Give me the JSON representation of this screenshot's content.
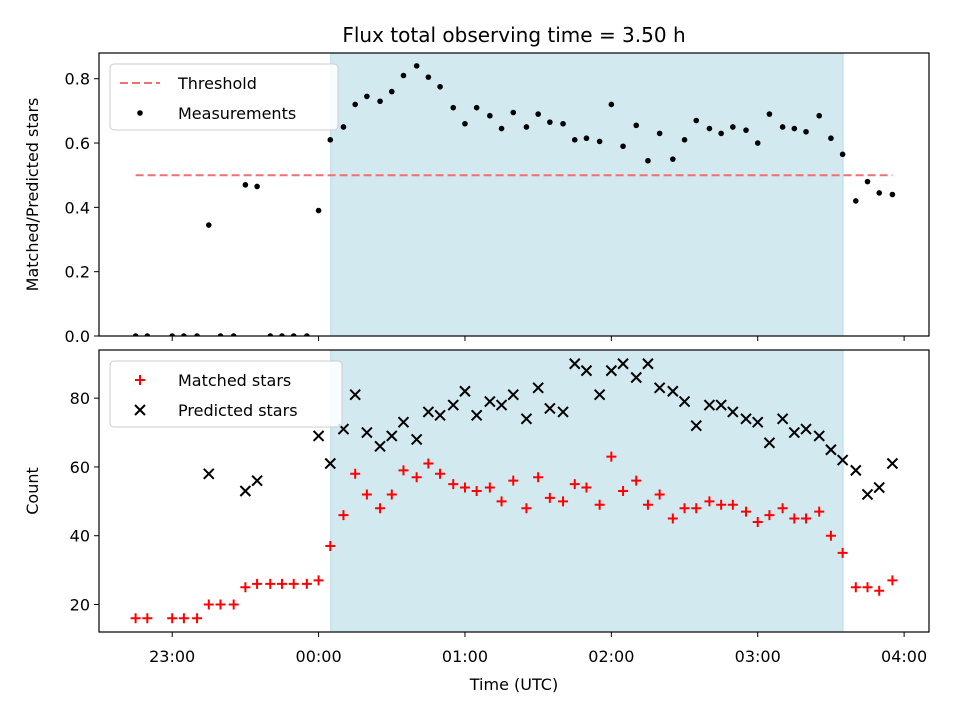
{
  "chart_data": [
    {
      "type": "scatter",
      "title": "Flux total observing time = 3.50 h",
      "xlabel": "",
      "ylabel": "Matched/Predicted stars",
      "x_unit": "hours relative to 00:00 UTC",
      "xlim": [
        -1.5,
        4.17
      ],
      "ylim": [
        0.0,
        0.88
      ],
      "y_ticks": [
        0.0,
        0.2,
        0.4,
        0.6,
        0.8
      ],
      "y_tick_labels": [
        "0.0",
        "0.2",
        "0.4",
        "0.6",
        "0.8"
      ],
      "shaded_interval": [
        0.083,
        3.583
      ],
      "shade_color": "#d3e9f0",
      "legend_position": "upper left",
      "legend": [
        "Threshold",
        "Measurements"
      ],
      "threshold": {
        "name": "Threshold",
        "y": 0.5,
        "x_range": [
          -1.25,
          3.92
        ],
        "color": "#f07070",
        "style": "dashed"
      },
      "series": [
        {
          "name": "Measurements",
          "color": "#000000",
          "marker": "dot",
          "x": [
            -1.25,
            -1.17,
            -1.0,
            -0.92,
            -0.83,
            -0.75,
            -0.67,
            -0.58,
            -0.5,
            -0.42,
            -0.33,
            -0.25,
            -0.17,
            -0.08,
            0.0,
            0.08,
            0.17,
            0.25,
            0.33,
            0.42,
            0.5,
            0.58,
            0.67,
            0.75,
            0.83,
            0.92,
            1.0,
            1.08,
            1.17,
            1.25,
            1.33,
            1.42,
            1.5,
            1.58,
            1.67,
            1.75,
            1.83,
            1.92,
            2.0,
            2.08,
            2.17,
            2.25,
            2.33,
            2.42,
            2.5,
            2.58,
            2.67,
            2.75,
            2.83,
            2.92,
            3.0,
            3.08,
            3.17,
            3.25,
            3.33,
            3.42,
            3.5,
            3.58,
            3.67,
            3.75,
            3.83,
            3.92
          ],
          "y": [
            0.0,
            0.0,
            0.0,
            0.0,
            0.0,
            0.345,
            0.0,
            0.0,
            0.47,
            0.465,
            0.0,
            0.0,
            0.0,
            0.0,
            0.39,
            0.61,
            0.65,
            0.72,
            0.745,
            0.73,
            0.76,
            0.81,
            0.84,
            0.805,
            0.775,
            0.71,
            0.66,
            0.71,
            0.685,
            0.645,
            0.695,
            0.65,
            0.69,
            0.665,
            0.66,
            0.61,
            0.615,
            0.605,
            0.72,
            0.59,
            0.655,
            0.545,
            0.63,
            0.55,
            0.61,
            0.67,
            0.645,
            0.63,
            0.65,
            0.64,
            0.6,
            0.69,
            0.65,
            0.645,
            0.635,
            0.685,
            0.615,
            0.565,
            0.42,
            0.48,
            0.445,
            0.44
          ]
        }
      ]
    },
    {
      "type": "scatter",
      "title": "",
      "xlabel": "Time (UTC)",
      "ylabel": "Count",
      "x_unit": "hours relative to 00:00 UTC",
      "xlim": [
        -1.5,
        4.17
      ],
      "ylim": [
        12.0,
        94.0
      ],
      "y_ticks": [
        20,
        40,
        60,
        80
      ],
      "y_tick_labels": [
        "20",
        "40",
        "60",
        "80"
      ],
      "x_ticks": [
        -1.0,
        0.0,
        1.0,
        2.0,
        3.0,
        4.0
      ],
      "x_tick_labels": [
        "23:00",
        "00:00",
        "01:00",
        "02:00",
        "03:00",
        "04:00"
      ],
      "shaded_interval": [
        0.083,
        3.583
      ],
      "shade_color": "#d3e9f0",
      "legend_position": "upper left",
      "legend": [
        "Matched stars",
        "Predicted stars"
      ],
      "series": [
        {
          "name": "Matched stars",
          "color": "#ff0000",
          "marker": "plus",
          "x": [
            -1.25,
            -1.17,
            -1.0,
            -0.92,
            -0.83,
            -0.75,
            -0.67,
            -0.58,
            -0.5,
            -0.42,
            -0.33,
            -0.25,
            -0.17,
            -0.08,
            0.0,
            0.08,
            0.17,
            0.25,
            0.33,
            0.42,
            0.5,
            0.58,
            0.67,
            0.75,
            0.83,
            0.92,
            1.0,
            1.08,
            1.17,
            1.25,
            1.33,
            1.42,
            1.5,
            1.58,
            1.67,
            1.75,
            1.83,
            1.92,
            2.0,
            2.08,
            2.17,
            2.25,
            2.33,
            2.42,
            2.5,
            2.58,
            2.67,
            2.75,
            2.83,
            2.92,
            3.0,
            3.08,
            3.17,
            3.25,
            3.33,
            3.42,
            3.5,
            3.58,
            3.67,
            3.75,
            3.83,
            3.92
          ],
          "y": [
            16,
            16,
            16,
            16,
            16,
            20,
            20,
            20,
            25,
            26,
            26,
            26,
            26,
            26,
            27,
            37,
            46,
            58,
            52,
            48,
            52,
            59,
            57,
            61,
            58,
            55,
            54,
            53,
            54,
            50,
            56,
            48,
            57,
            51,
            50,
            55,
            54,
            49,
            63,
            53,
            56,
            49,
            52,
            45,
            48,
            48,
            50,
            49,
            49,
            47,
            44,
            46,
            48,
            45,
            45,
            47,
            40,
            35,
            25,
            25,
            24,
            27
          ]
        },
        {
          "name": "Predicted stars",
          "color": "#000000",
          "marker": "x",
          "x": [
            -0.75,
            -0.5,
            -0.42,
            0.0,
            0.08,
            0.17,
            0.25,
            0.33,
            0.42,
            0.5,
            0.58,
            0.67,
            0.75,
            0.83,
            0.92,
            1.0,
            1.08,
            1.17,
            1.25,
            1.33,
            1.42,
            1.5,
            1.58,
            1.67,
            1.75,
            1.83,
            1.92,
            2.0,
            2.08,
            2.17,
            2.25,
            2.33,
            2.42,
            2.5,
            2.58,
            2.67,
            2.75,
            2.83,
            2.92,
            3.0,
            3.08,
            3.17,
            3.25,
            3.33,
            3.42,
            3.5,
            3.58,
            3.67,
            3.75,
            3.83,
            3.92
          ],
          "y": [
            58,
            53,
            56,
            69,
            61,
            71,
            81,
            70,
            66,
            69,
            73,
            68,
            76,
            75,
            78,
            82,
            75,
            79,
            78,
            81,
            74,
            83,
            77,
            76,
            90,
            88,
            81,
            88,
            90,
            86,
            90,
            83,
            82,
            79,
            72,
            78,
            78,
            76,
            74,
            73,
            67,
            74,
            70,
            71,
            69,
            65,
            62,
            59,
            52,
            54,
            61
          ]
        }
      ]
    }
  ]
}
